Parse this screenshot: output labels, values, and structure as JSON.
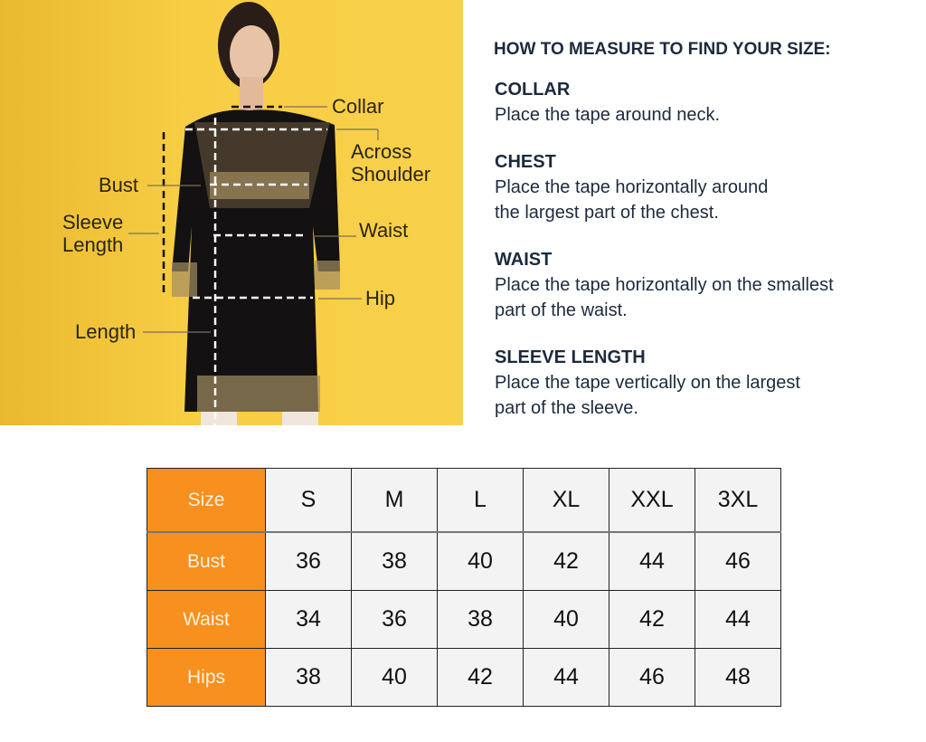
{
  "colors": {
    "background_yellow": "#f7cd44",
    "table_header_orange": "#f7901e",
    "cell_gray": "#f3f3f3",
    "text_navy": "#1d2a3c"
  },
  "diagram_labels": {
    "collar": "Collar",
    "across_shoulder_1": "Across",
    "across_shoulder_2": "Shoulder",
    "bust": "Bust",
    "sleeve_length_1": "Sleeve",
    "sleeve_length_2": "Length",
    "waist": "Waist",
    "hip": "Hip",
    "length": "Length"
  },
  "guide": {
    "title": "HOW TO MEASURE TO FIND YOUR SIZE:",
    "sections": [
      {
        "heading": "COLLAR",
        "lines": [
          "Place the tape around neck."
        ]
      },
      {
        "heading": "CHEST",
        "lines": [
          "Place the tape horizontally around",
          "the largest part of the chest."
        ]
      },
      {
        "heading": "WAIST",
        "lines": [
          "Place the tape horizontally on the smallest",
          "part of the waist."
        ]
      },
      {
        "heading": "SLEEVE LENGTH",
        "lines": [
          "Place the tape vertically on the largest",
          "part of the sleeve."
        ]
      }
    ]
  },
  "size_table": {
    "header_label": "Size",
    "sizes": [
      "S",
      "M",
      "L",
      "XL",
      "XXL",
      "3XL"
    ],
    "rows": [
      {
        "label": "Bust",
        "values": [
          "36",
          "38",
          "40",
          "42",
          "44",
          "46"
        ]
      },
      {
        "label": "Waist",
        "values": [
          "34",
          "36",
          "38",
          "40",
          "42",
          "44"
        ]
      },
      {
        "label": "Hips",
        "values": [
          "38",
          "40",
          "42",
          "44",
          "46",
          "48"
        ]
      }
    ]
  }
}
